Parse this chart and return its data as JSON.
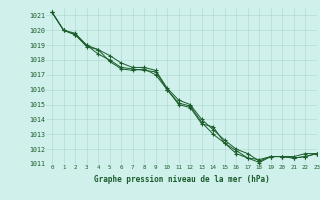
{
  "title": "Graphe pression niveau de la mer (hPa)",
  "background_color": "#cff0eb",
  "grid_color": "#aad8d0",
  "line_color": "#1a5c2a",
  "xlim": [
    -0.5,
    23
  ],
  "ylim": [
    1011,
    1021.5
  ],
  "xticks": [
    0,
    1,
    2,
    3,
    4,
    5,
    6,
    7,
    8,
    9,
    10,
    11,
    12,
    13,
    14,
    15,
    16,
    17,
    18,
    19,
    20,
    21,
    22,
    23
  ],
  "yticks": [
    1011,
    1012,
    1013,
    1014,
    1015,
    1016,
    1017,
    1018,
    1019,
    1020,
    1021
  ],
  "series": [
    [
      1021.2,
      1020.0,
      1019.7,
      1019.0,
      1018.7,
      1018.3,
      1017.8,
      1017.5,
      1017.5,
      1017.3,
      1016.1,
      1015.3,
      1015.0,
      1014.0,
      1013.3,
      1012.6,
      1012.0,
      1011.7,
      1011.2,
      1011.5,
      1011.5,
      1011.5,
      1011.7,
      1011.7
    ],
    [
      1021.2,
      1020.0,
      1019.8,
      1019.0,
      1018.4,
      1018.0,
      1017.5,
      1017.4,
      1017.3,
      1017.2,
      1016.0,
      1015.1,
      1014.9,
      1013.8,
      1013.0,
      1012.4,
      1011.9,
      1011.4,
      1011.1,
      1011.5,
      1011.5,
      1011.4,
      1011.5,
      1011.7
    ],
    [
      1021.2,
      1020.0,
      1019.7,
      1018.9,
      1018.7,
      1017.9,
      1017.4,
      1017.3,
      1017.4,
      1017.0,
      1016.0,
      1015.0,
      1014.8,
      1013.7,
      1013.5,
      1012.4,
      1011.7,
      1011.4,
      1011.3,
      1011.5,
      1011.5,
      1011.4,
      1011.5,
      1011.7
    ]
  ]
}
